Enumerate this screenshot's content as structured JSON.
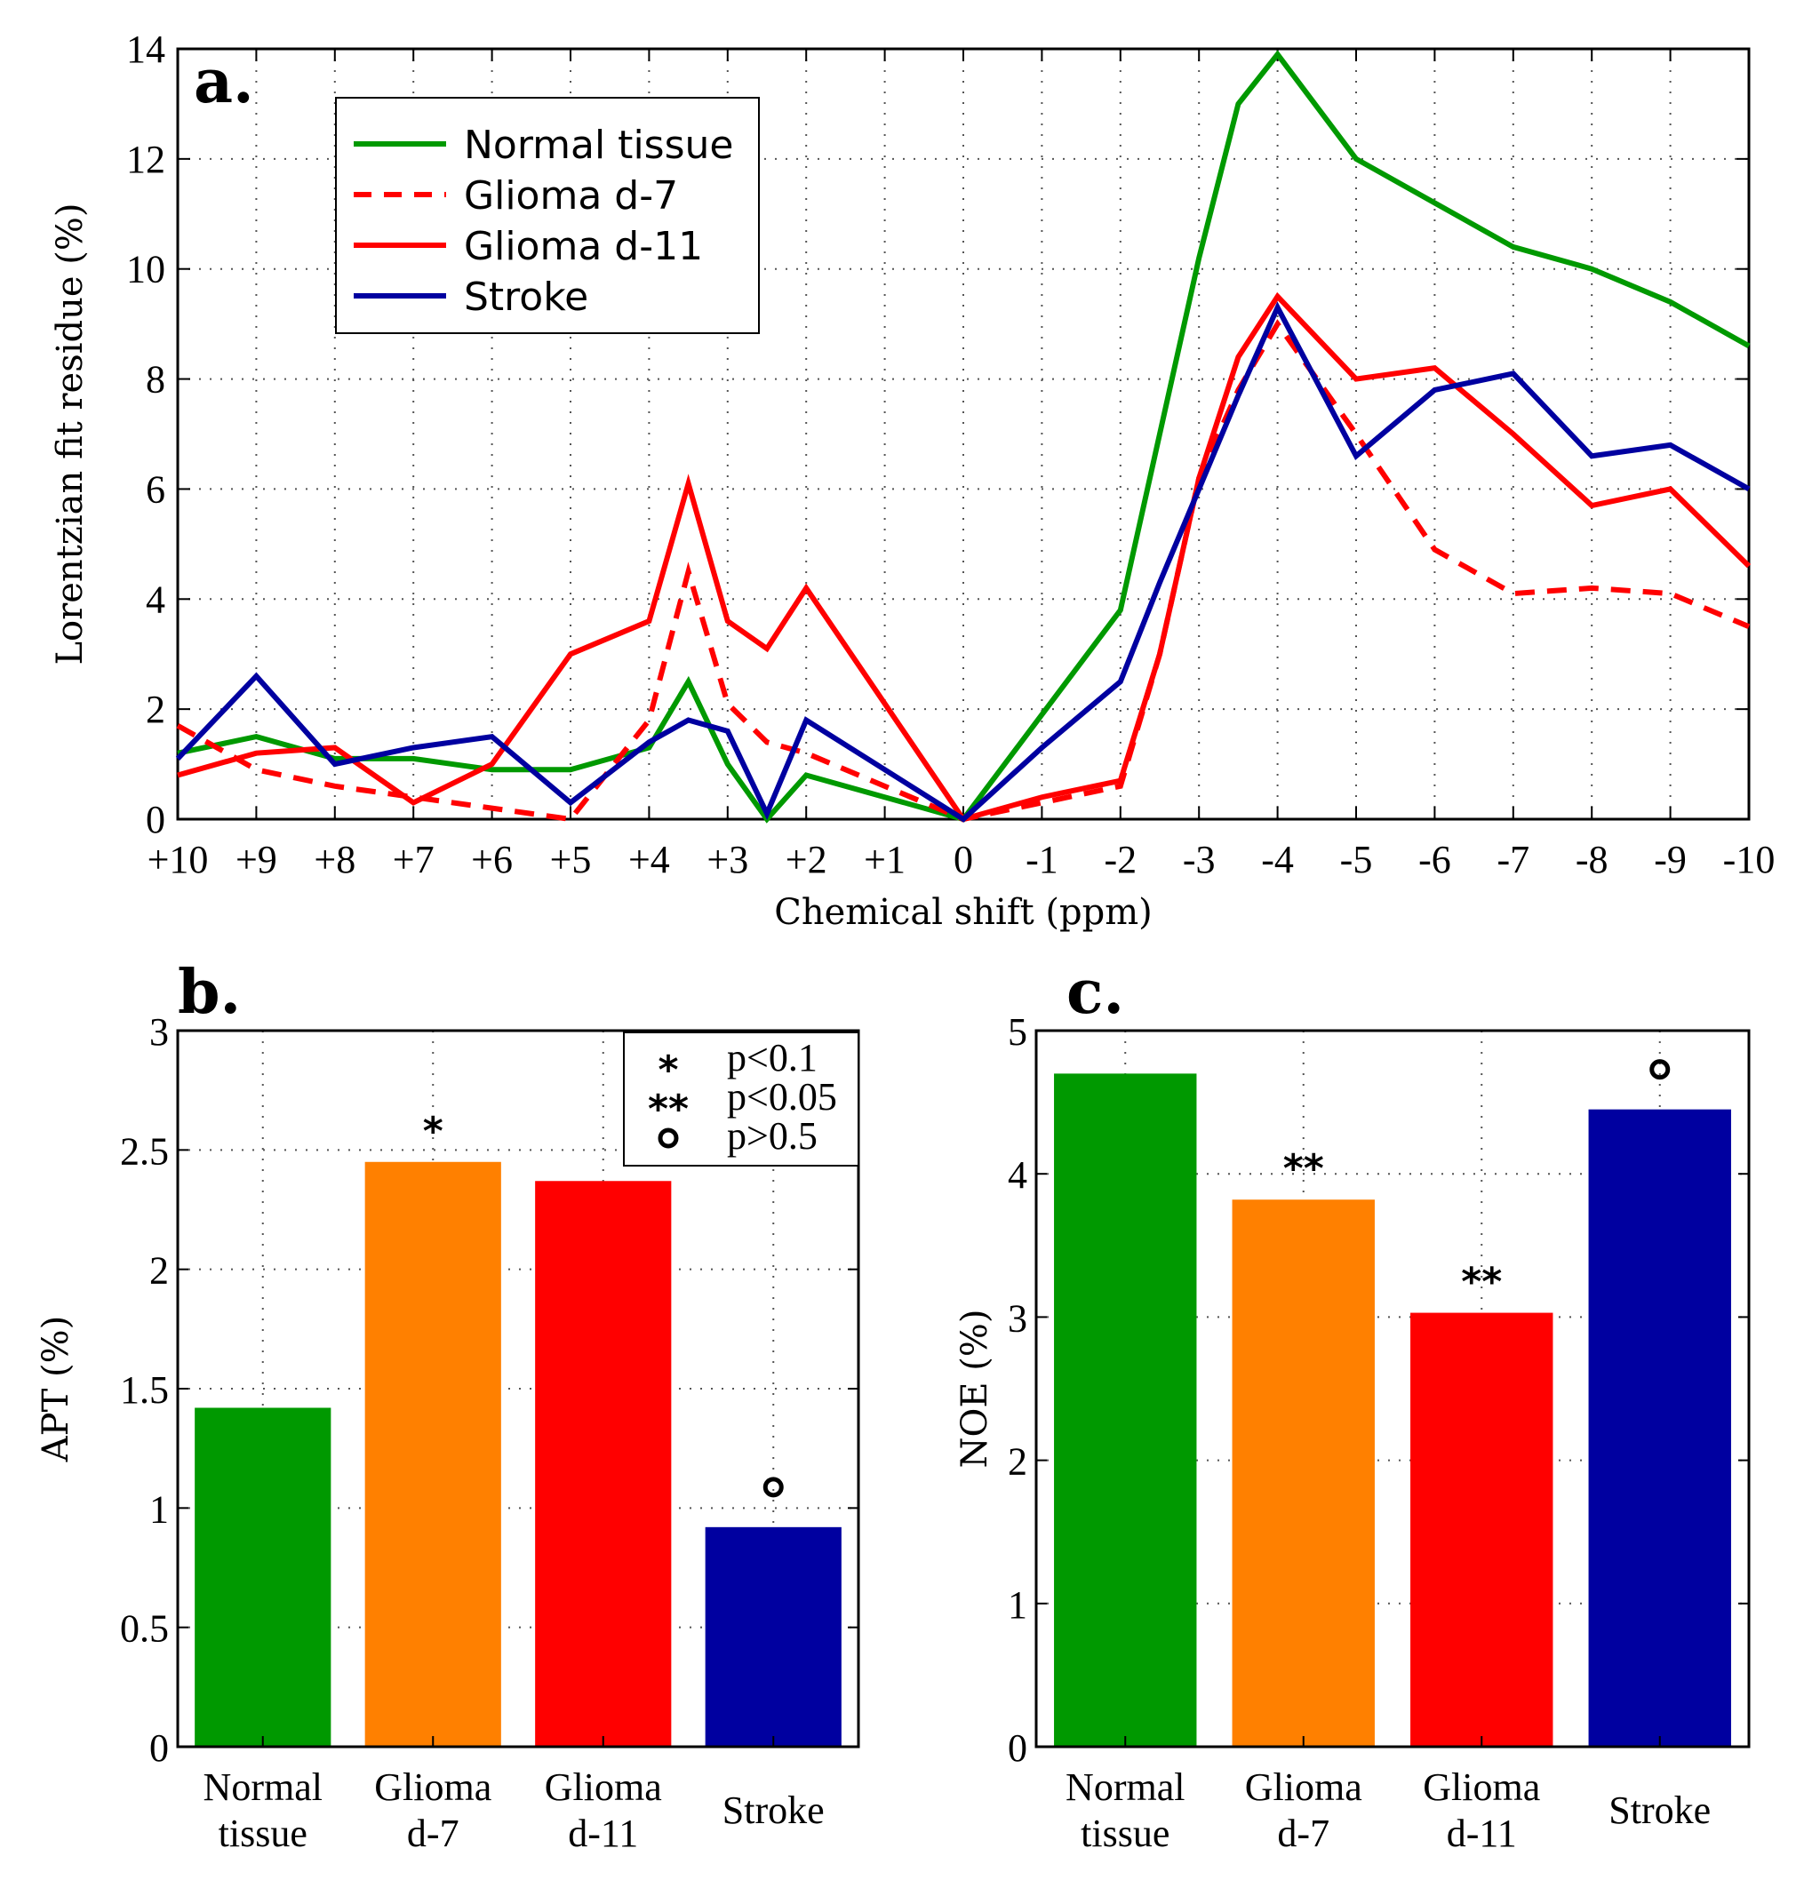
{
  "chart_data": [
    {
      "panel": "a.",
      "type": "line",
      "title": "",
      "xlabel": "Chemical shift (ppm)",
      "ylabel": "Lorentzian fit residue  (%)",
      "xlim": [
        10,
        -10
      ],
      "ylim": [
        0,
        14
      ],
      "x_ticks": [
        "+10",
        "+9",
        "+8",
        "+7",
        "+6",
        "+5",
        "+4",
        "+3",
        "+2",
        "+1",
        "0",
        "-1",
        "-2",
        "-3",
        "-4",
        "-5",
        "-6",
        "-7",
        "-8",
        "-9",
        "-10"
      ],
      "y_ticks": [
        "0",
        "2",
        "4",
        "6",
        "8",
        "10",
        "12",
        "14"
      ],
      "grid": true,
      "legend_position": "top-left",
      "x": [
        10,
        9,
        8,
        7,
        6,
        5,
        4,
        3.5,
        3,
        2.5,
        2,
        1,
        0,
        -1,
        -2,
        -2.5,
        -3,
        -3.5,
        -4,
        -5,
        -6,
        -7,
        -8,
        -9,
        -10
      ],
      "series": [
        {
          "name": "Normal tissue",
          "color": "#009900",
          "style": "solid",
          "values": [
            1.2,
            1.5,
            1.1,
            1.1,
            0.9,
            0.9,
            1.3,
            2.5,
            1.0,
            0.0,
            0.8,
            0.4,
            0.0,
            1.9,
            3.8,
            7.0,
            10.2,
            13.0,
            13.9,
            12.0,
            11.2,
            10.4,
            10.0,
            9.4,
            8.6
          ]
        },
        {
          "name": "Glioma d-7",
          "color": "#ff0000",
          "style": "dashed",
          "values": [
            1.7,
            0.9,
            0.6,
            0.4,
            0.2,
            0.0,
            1.8,
            4.5,
            2.1,
            1.4,
            1.2,
            0.6,
            0.0,
            0.3,
            0.6,
            3.0,
            6.2,
            7.8,
            9.0,
            7.0,
            4.9,
            4.1,
            4.2,
            4.1,
            3.5
          ]
        },
        {
          "name": "Glioma d-11",
          "color": "#ff0000",
          "style": "solid",
          "values": [
            0.8,
            1.2,
            1.3,
            0.3,
            1.0,
            3.0,
            3.6,
            6.1,
            3.6,
            3.1,
            4.2,
            2.1,
            0.0,
            0.4,
            0.7,
            3.0,
            6.2,
            8.4,
            9.5,
            8.0,
            8.2,
            7.0,
            5.7,
            6.0,
            4.6
          ]
        },
        {
          "name": "Stroke",
          "color": "#0000a0",
          "style": "solid",
          "values": [
            1.1,
            2.6,
            1.0,
            1.3,
            1.5,
            0.3,
            1.4,
            1.8,
            1.6,
            0.1,
            1.8,
            0.9,
            0.0,
            1.3,
            2.5,
            4.3,
            6.0,
            7.7,
            9.3,
            6.6,
            7.8,
            8.1,
            6.6,
            6.8,
            6.0
          ]
        }
      ]
    },
    {
      "panel": "b.",
      "type": "bar",
      "ylabel": "APT (%)",
      "ylim": [
        0,
        3
      ],
      "y_ticks": [
        "0",
        "0.5",
        "1",
        "1.5",
        "2",
        "2.5",
        "3"
      ],
      "grid": true,
      "categories": [
        [
          "Normal",
          "tissue"
        ],
        [
          "Glioma",
          "d-7"
        ],
        [
          "Glioma",
          "d-11"
        ],
        [
          "Stroke"
        ]
      ],
      "colors": [
        "#009900",
        "#ff8000",
        "#ff0000",
        "#0000a0"
      ],
      "values": [
        1.42,
        2.45,
        2.37,
        0.92
      ],
      "annotations": [
        "",
        "*",
        "",
        "o"
      ],
      "legend_position": "top-right",
      "legend": [
        {
          "symbol": "*",
          "text": "p<0.1"
        },
        {
          "symbol": "**",
          "text": "p<0.05"
        },
        {
          "symbol": "o",
          "text": "p>0.5"
        }
      ]
    },
    {
      "panel": "c.",
      "type": "bar",
      "ylabel": "NOE (%)",
      "ylim": [
        0,
        5
      ],
      "y_ticks": [
        "0",
        "1",
        "2",
        "3",
        "4",
        "5"
      ],
      "grid": true,
      "categories": [
        [
          "Normal",
          "tissue"
        ],
        [
          "Glioma",
          "d-7"
        ],
        [
          "Glioma",
          "d-11"
        ],
        [
          "Stroke"
        ]
      ],
      "colors": [
        "#009900",
        "#ff8000",
        "#ff0000",
        "#0000a0"
      ],
      "values": [
        4.7,
        3.82,
        3.03,
        4.45
      ],
      "annotations": [
        "",
        "**",
        "**",
        "o"
      ]
    }
  ]
}
